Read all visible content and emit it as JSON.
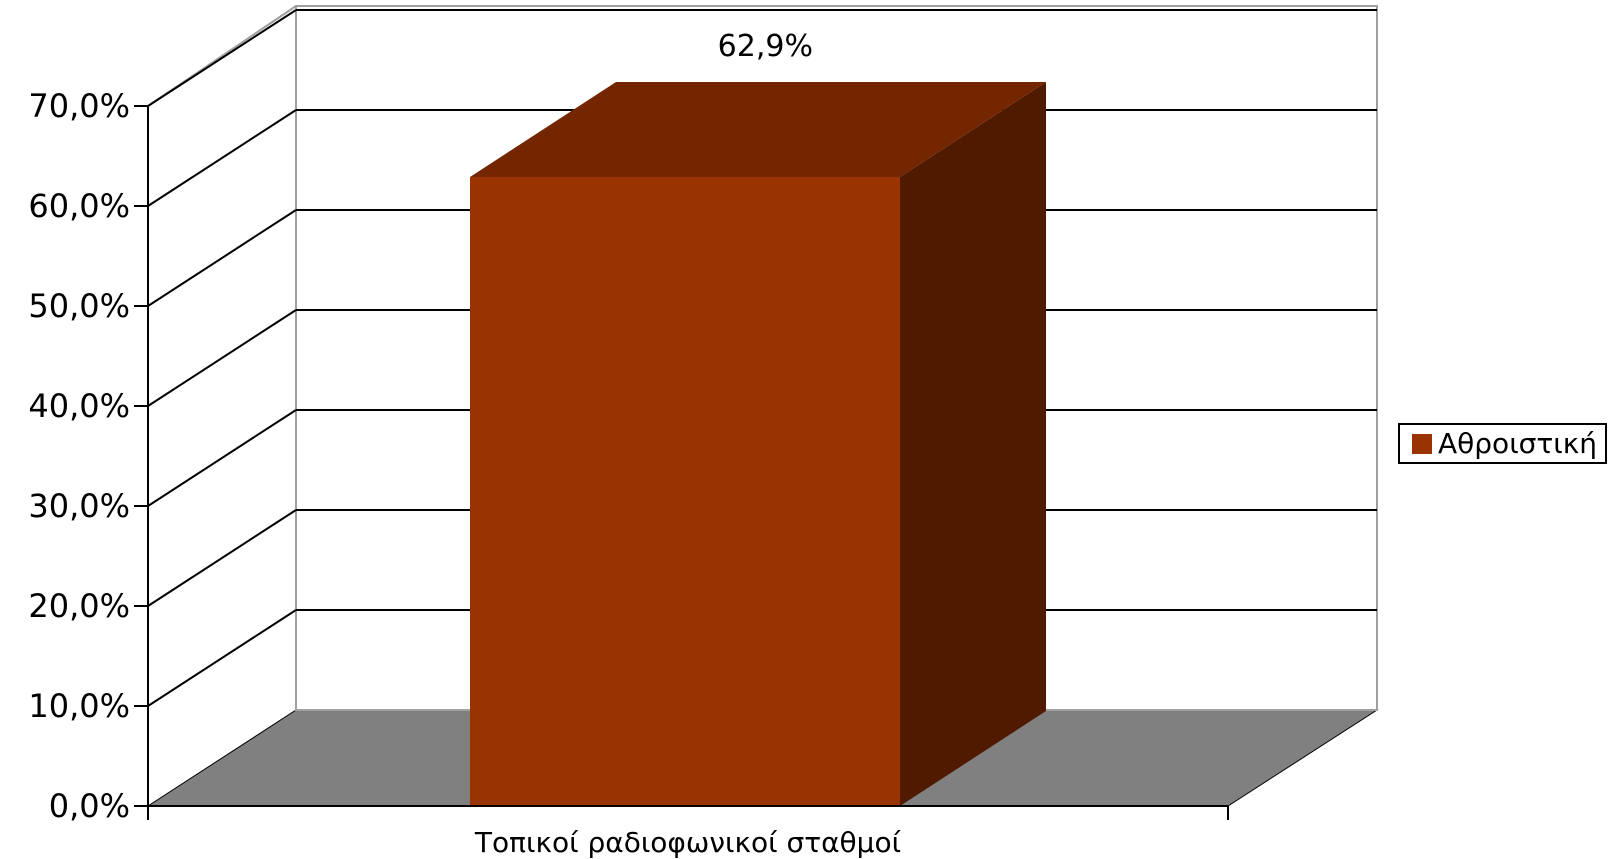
{
  "chart_data": {
    "type": "bar",
    "style": "3d",
    "categories": [
      "Τοπικοί ραδιοφωνικοί σταθμοί"
    ],
    "series": [
      {
        "name": "Αθροιστική",
        "values": [
          62.9
        ]
      }
    ],
    "data_labels": [
      "62,9%"
    ],
    "y_ticks": [
      "0,0%",
      "10,0%",
      "20,0%",
      "30,0%",
      "40,0%",
      "50,0%",
      "60,0%",
      "70,0%"
    ],
    "ylim": [
      0,
      70
    ],
    "grid": true,
    "legend_position": "right",
    "colors": {
      "bar_front": "#993300",
      "bar_top": "#732600",
      "bar_side": "#4f1a00",
      "floor": "#808080",
      "wall_edge": "#a0a0a0"
    }
  }
}
